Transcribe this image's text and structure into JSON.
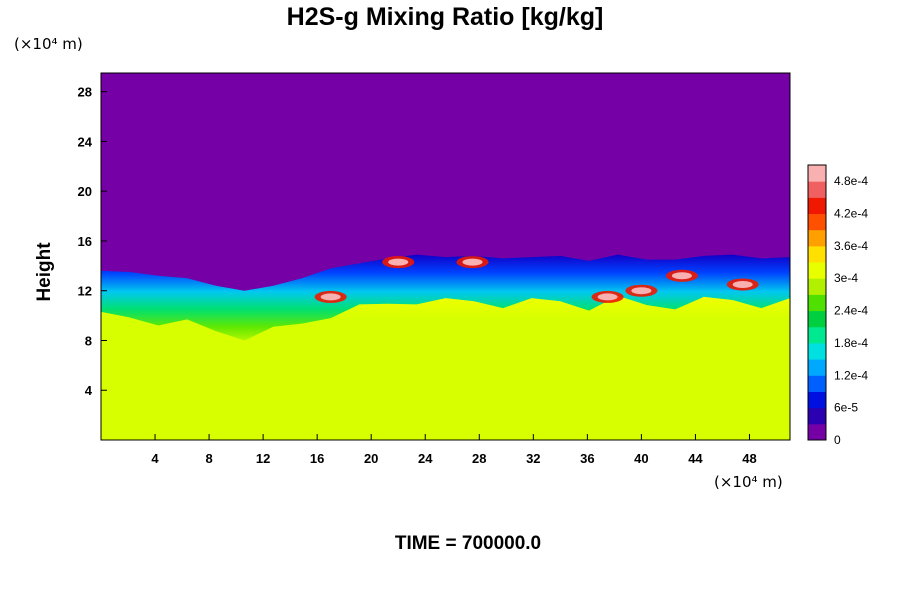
{
  "chart_data": {
    "type": "heatmap",
    "title": "H2S-g Mixing Ratio [kg/kg]",
    "ylabel": "Height",
    "xlabel": "",
    "x_unit": "(×10⁴ m)",
    "y_unit": "(×10⁴ m)",
    "x_ticks": [
      "4",
      "8",
      "12",
      "16",
      "20",
      "24",
      "28",
      "32",
      "36",
      "40",
      "44",
      "48"
    ],
    "y_ticks": [
      "4",
      "8",
      "12",
      "16",
      "20",
      "24",
      "28"
    ],
    "xlim": [
      0,
      51
    ],
    "ylim": [
      0,
      29.5
    ],
    "colorbar": {
      "labels": [
        "0",
        "6e-5",
        "1.2e-4",
        "1.8e-4",
        "2.4e-4",
        "3e-4",
        "3.6e-4",
        "4.2e-4",
        "4.8e-4"
      ],
      "range": [
        0,
        0.00051
      ],
      "colors": [
        "#7400a6",
        "#2a00b0",
        "#0010e0",
        "#0060ff",
        "#00a8ff",
        "#00e0e0",
        "#00e890",
        "#00d040",
        "#50e000",
        "#b0f000",
        "#e8ff00",
        "#ffe000",
        "#ffa000",
        "#ff5000",
        "#f01800",
        "#f06060",
        "#f8b0b0"
      ]
    },
    "regions": [
      {
        "name": "upper",
        "value": 0,
        "y_range": [
          14,
          29.5
        ],
        "color": "#7400a6"
      },
      {
        "name": "lower",
        "value": 0.00033,
        "y_range": [
          0,
          10
        ],
        "color": "#d8ff00"
      }
    ],
    "boundary_y": [
      13.6,
      13.5,
      13.2,
      13.0,
      12.4,
      12.0,
      12.4,
      13.0,
      13.8,
      14.2,
      14.6,
      14.9,
      14.7,
      14.8,
      14.6,
      14.7,
      14.8,
      14.4,
      14.9,
      14.5,
      14.5,
      14.8,
      14.9,
      14.6,
      14.7
    ],
    "hotspots": [
      {
        "x": 22.0,
        "y": 14.3,
        "value": 0.0005
      },
      {
        "x": 27.5,
        "y": 14.3,
        "value": 0.0005
      },
      {
        "x": 17.0,
        "y": 11.5,
        "value": 0.0005
      },
      {
        "x": 37.5,
        "y": 11.5,
        "value": 0.0005
      },
      {
        "x": 40.0,
        "y": 12.0,
        "value": 0.0005
      },
      {
        "x": 43.0,
        "y": 13.2,
        "value": 0.0005
      },
      {
        "x": 47.5,
        "y": 12.5,
        "value": 0.0005
      }
    ],
    "annotation": "TIME = 700000.0"
  }
}
